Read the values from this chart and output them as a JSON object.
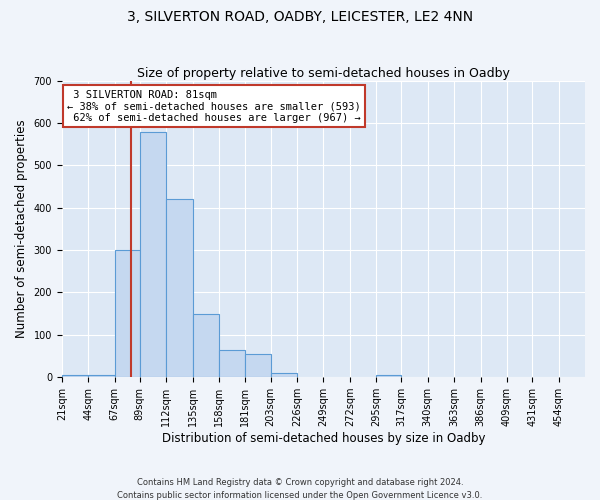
{
  "title": "3, SILVERTON ROAD, OADBY, LEICESTER, LE2 4NN",
  "subtitle": "Size of property relative to semi-detached houses in Oadby",
  "xlabel": "Distribution of semi-detached houses by size in Oadby",
  "ylabel": "Number of semi-detached properties",
  "footnote1": "Contains HM Land Registry data © Crown copyright and database right 2024.",
  "footnote2": "Contains public sector information licensed under the Open Government Licence v3.0.",
  "bin_edges": [
    21,
    44,
    67,
    89,
    112,
    135,
    158,
    181,
    203,
    226,
    249,
    272,
    295,
    317,
    340,
    363,
    386,
    409,
    431,
    454,
    477
  ],
  "bar_heights": [
    5,
    5,
    300,
    580,
    420,
    150,
    65,
    55,
    10,
    0,
    0,
    0,
    5,
    0,
    0,
    0,
    0,
    0,
    0,
    0
  ],
  "bar_color": "#c5d8f0",
  "bar_edge_color": "#5b9bd5",
  "property_value": 81,
  "property_label": "3 SILVERTON ROAD: 81sqm",
  "pct_smaller": 38,
  "count_smaller": 593,
  "pct_larger": 62,
  "count_larger": 967,
  "vline_color": "#c0392b",
  "annotation_box_edge": "#c0392b",
  "ylim": [
    0,
    700
  ],
  "yticks": [
    0,
    100,
    200,
    300,
    400,
    500,
    600,
    700
  ],
  "bg_color": "#dde8f5",
  "fig_color": "#f0f4fa",
  "grid_color": "#ffffff",
  "title_fontsize": 10,
  "subtitle_fontsize": 9,
  "axis_label_fontsize": 8.5,
  "tick_fontsize": 7,
  "annotation_fontsize": 7.5
}
